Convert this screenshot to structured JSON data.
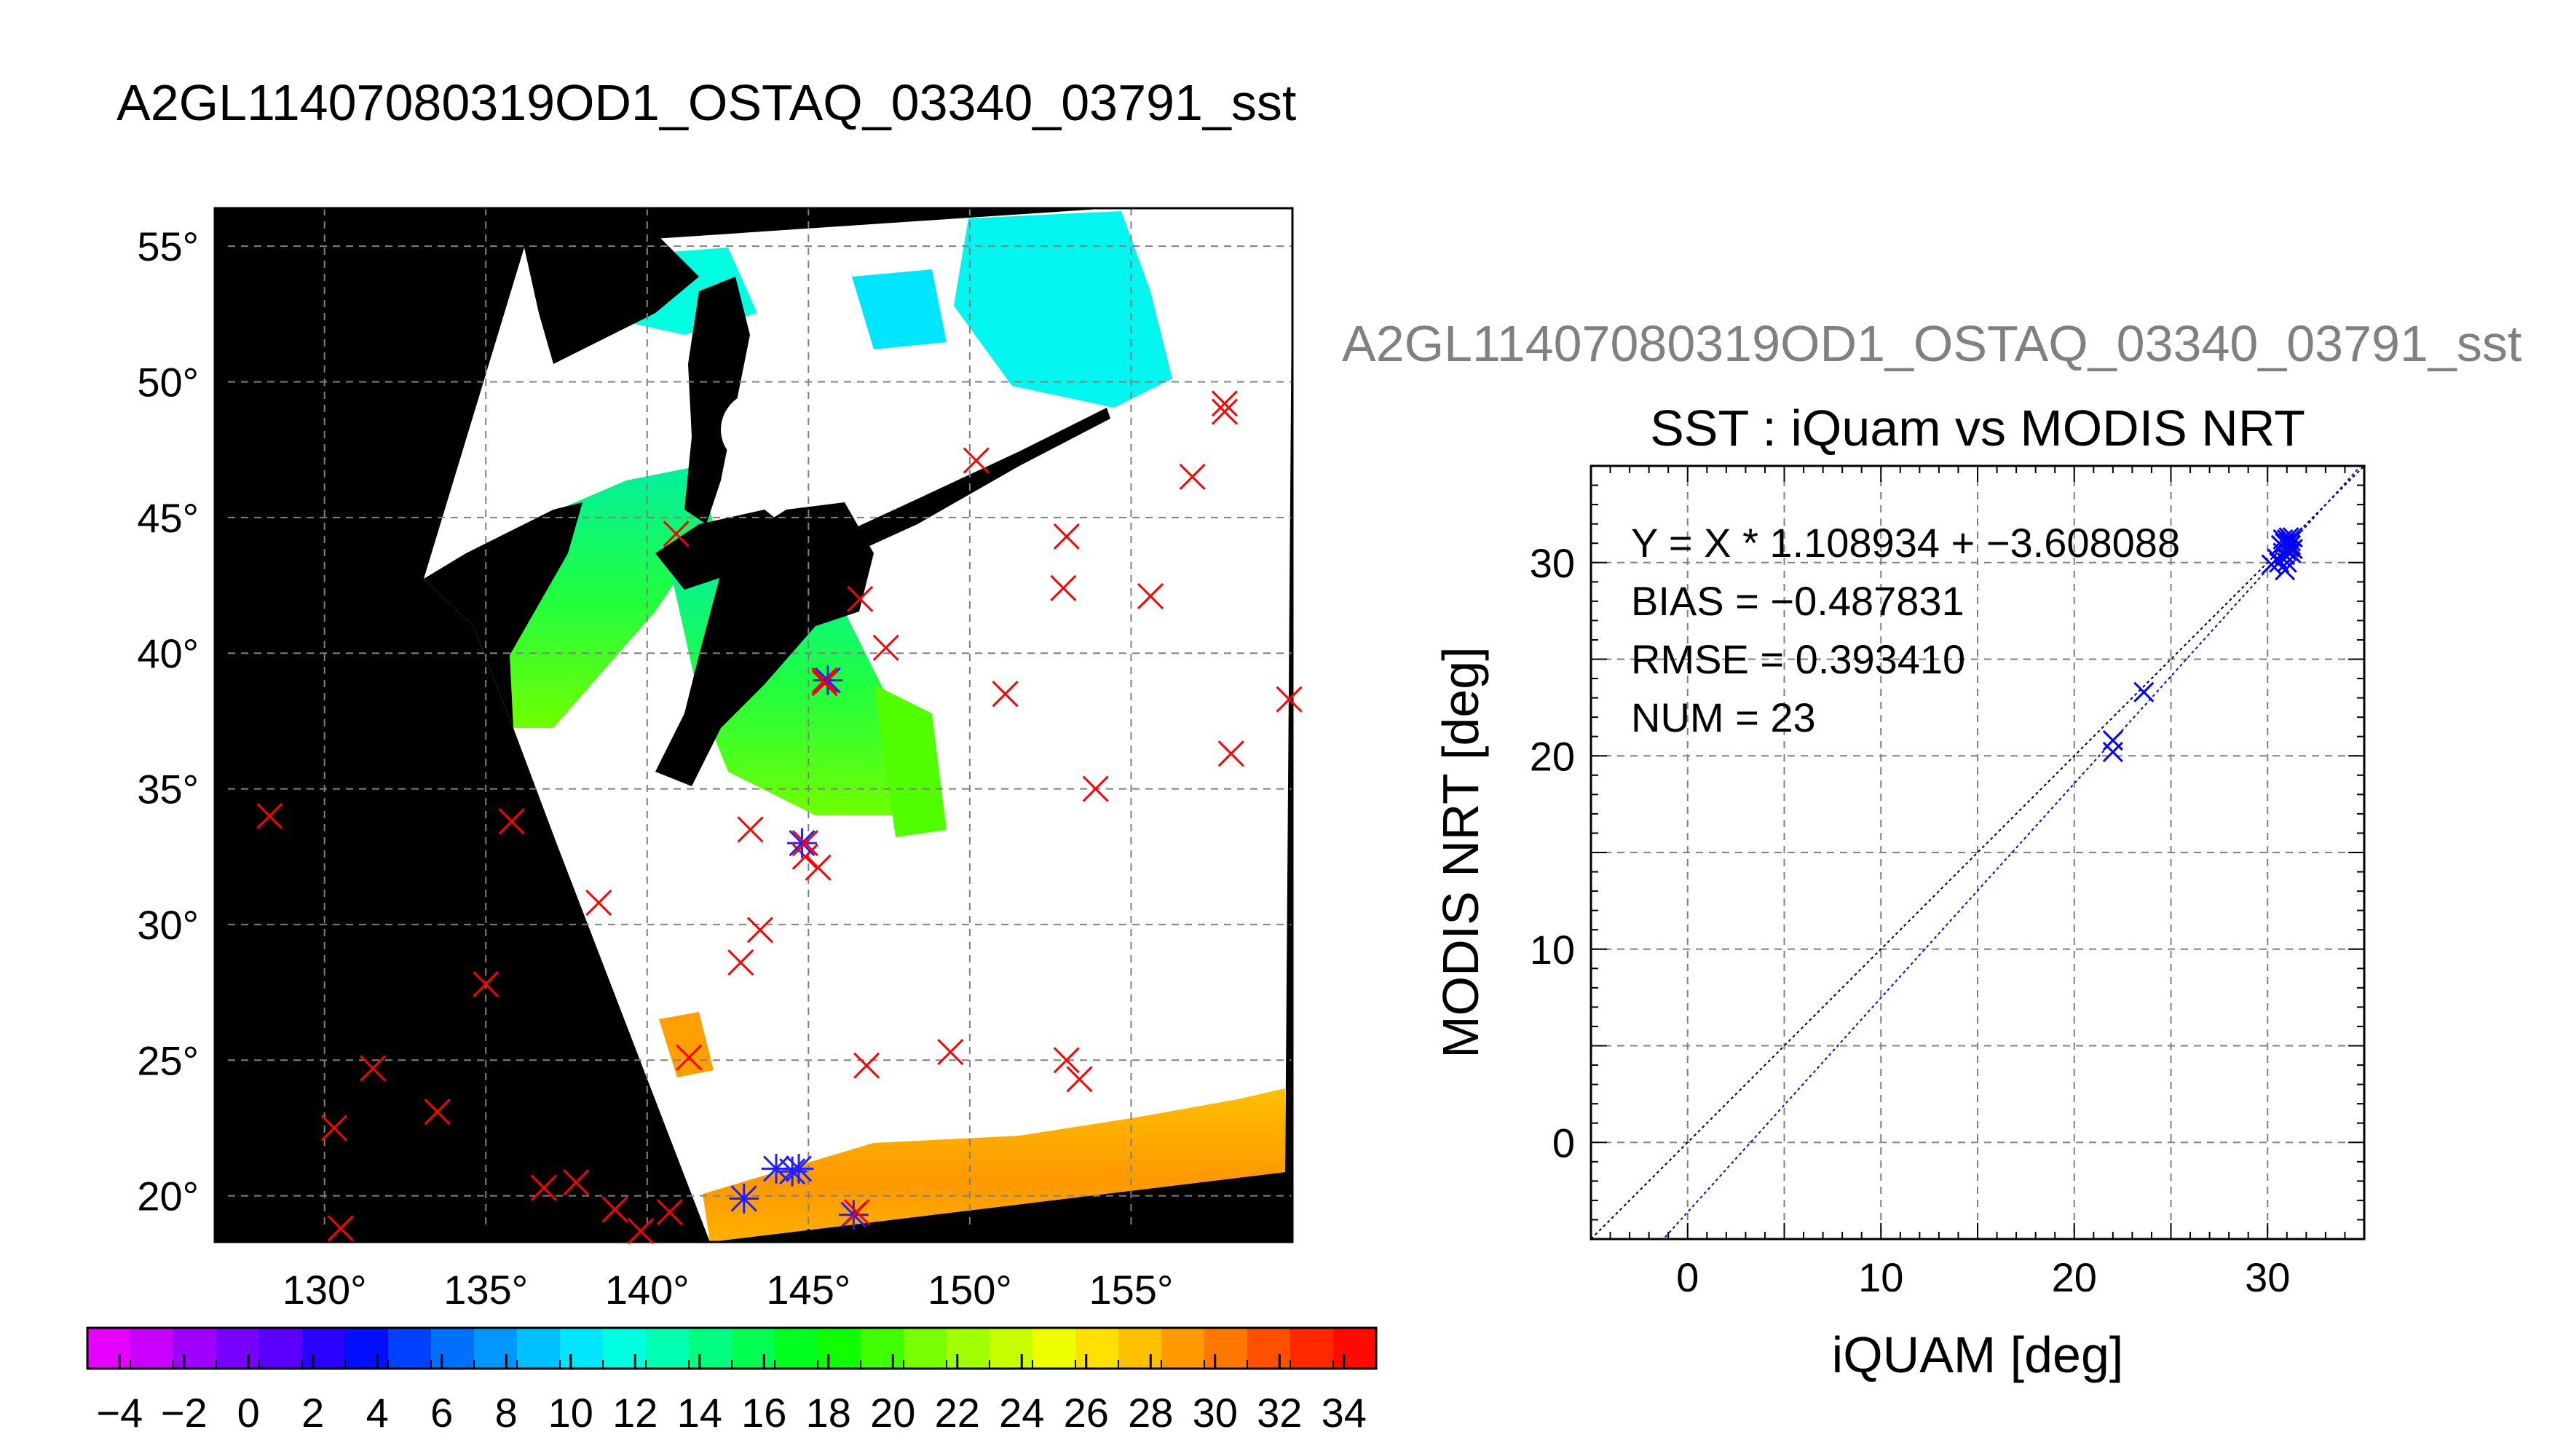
{
  "main_title": "A2GL11407080319OD1_OSTAQ_03340_03791_sst",
  "map": {
    "lon_ticks": [
      130,
      135,
      140,
      145,
      150,
      155
    ],
    "lat_ticks": [
      55,
      50,
      45,
      40,
      35,
      30,
      25,
      20
    ],
    "deg_symbol": "°",
    "red_x": [
      [
        128.3,
        34.0
      ],
      [
        130.5,
        18.8
      ],
      [
        130.3,
        22.5
      ],
      [
        131.5,
        24.7
      ],
      [
        133.5,
        23.1
      ],
      [
        135.0,
        27.8
      ],
      [
        135.8,
        33.8
      ],
      [
        136.8,
        20.3
      ],
      [
        137.8,
        20.5
      ],
      [
        138.5,
        30.8
      ],
      [
        139.0,
        19.5
      ],
      [
        139.8,
        18.7
      ],
      [
        140.7,
        19.4
      ],
      [
        140.9,
        44.4
      ],
      [
        141.3,
        25.1
      ],
      [
        142.9,
        28.6
      ],
      [
        143.2,
        33.5
      ],
      [
        143.5,
        29.8
      ],
      [
        144.9,
        32.5
      ],
      [
        145.3,
        32.1
      ],
      [
        145.5,
        39.0
      ],
      [
        146.6,
        42.0
      ],
      [
        146.8,
        24.8
      ],
      [
        147.4,
        40.2
      ],
      [
        149.4,
        25.3
      ],
      [
        150.2,
        47.1
      ],
      [
        151.1,
        38.5
      ],
      [
        152.9,
        42.4
      ],
      [
        153.0,
        44.3
      ],
      [
        153.0,
        25.0
      ],
      [
        153.4,
        24.3
      ],
      [
        153.9,
        35.0
      ],
      [
        155.6,
        42.1
      ],
      [
        156.9,
        46.5
      ],
      [
        157.9,
        49.2
      ],
      [
        157.9,
        48.9
      ],
      [
        158.1,
        36.3
      ],
      [
        159.9,
        38.3
      ]
    ],
    "blue_star": [
      [
        143.0,
        19.9
      ],
      [
        144.0,
        21.0
      ],
      [
        144.5,
        20.9
      ],
      [
        144.7,
        21.0
      ],
      [
        144.8,
        33.0
      ],
      [
        145.6,
        39.0
      ],
      [
        146.4,
        19.3
      ]
    ],
    "blue_cross": [
      [
        144.9,
        33.0
      ],
      [
        145.5,
        38.9
      ],
      [
        146.5,
        19.4
      ]
    ]
  },
  "colorbar": {
    "tick_labels": [
      "−4",
      "−2",
      "0",
      "2",
      "4",
      "6",
      "8",
      "10",
      "12",
      "14",
      "16",
      "18",
      "20",
      "22",
      "24",
      "26",
      "28",
      "30",
      "32",
      "34"
    ],
    "range": [
      -5,
      35
    ],
    "colors": [
      "#e600ff",
      "#c800ff",
      "#9f00ff",
      "#7800ff",
      "#5a00ff",
      "#2a00ff",
      "#0010ff",
      "#0040ff",
      "#0070ff",
      "#0098ff",
      "#00c0ff",
      "#00e6ff",
      "#00ffe0",
      "#00ffb0",
      "#00ff80",
      "#00ff50",
      "#00ff20",
      "#10ff00",
      "#40ff00",
      "#78ff00",
      "#a0ff00",
      "#c8ff00",
      "#f0ff00",
      "#ffe000",
      "#ffc000",
      "#ff9a00",
      "#ff7800",
      "#ff5000",
      "#ff2800",
      "#ff0a00"
    ]
  },
  "scatter_title_top": "A2GL11407080319OD1_OSTAQ_03340_03791_sst",
  "chart_data": {
    "type": "scatter",
    "title": "SST : iQuam vs MODIS NRT",
    "xlabel": "iQUAM [deg]",
    "ylabel": "MODIS NRT [deg]",
    "xlim": [
      -5,
      35
    ],
    "ylim": [
      -5,
      35
    ],
    "xticks": [
      0,
      10,
      20,
      30
    ],
    "yticks": [
      0,
      10,
      20,
      30
    ],
    "grid": true,
    "annotations": [
      "Y = X * 1.108934 + −3.608088",
      "BIAS = −0.487831",
      "RMSE = 0.393410",
      "NUM = 23"
    ],
    "fit": {
      "slope": 1.108934,
      "intercept": -3.608088
    },
    "points": [
      [
        22.0,
        20.2
      ],
      [
        22.0,
        20.8
      ],
      [
        23.6,
        23.3
      ],
      [
        30.2,
        29.9
      ],
      [
        30.5,
        30.2
      ],
      [
        30.8,
        30.5
      ],
      [
        30.9,
        29.6
      ],
      [
        30.9,
        31.0
      ],
      [
        31.0,
        30.6
      ],
      [
        31.0,
        31.2
      ],
      [
        31.1,
        30.8
      ],
      [
        31.1,
        31.3
      ],
      [
        31.2,
        30.9
      ],
      [
        31.2,
        31.1
      ],
      [
        31.3,
        30.7
      ],
      [
        31.3,
        31.3
      ],
      [
        30.7,
        30.9
      ],
      [
        30.9,
        30.4
      ],
      [
        31.0,
        30.0
      ],
      [
        31.2,
        30.5
      ],
      [
        30.6,
        30.0
      ],
      [
        31.1,
        31.0
      ],
      [
        30.8,
        31.2
      ]
    ]
  }
}
